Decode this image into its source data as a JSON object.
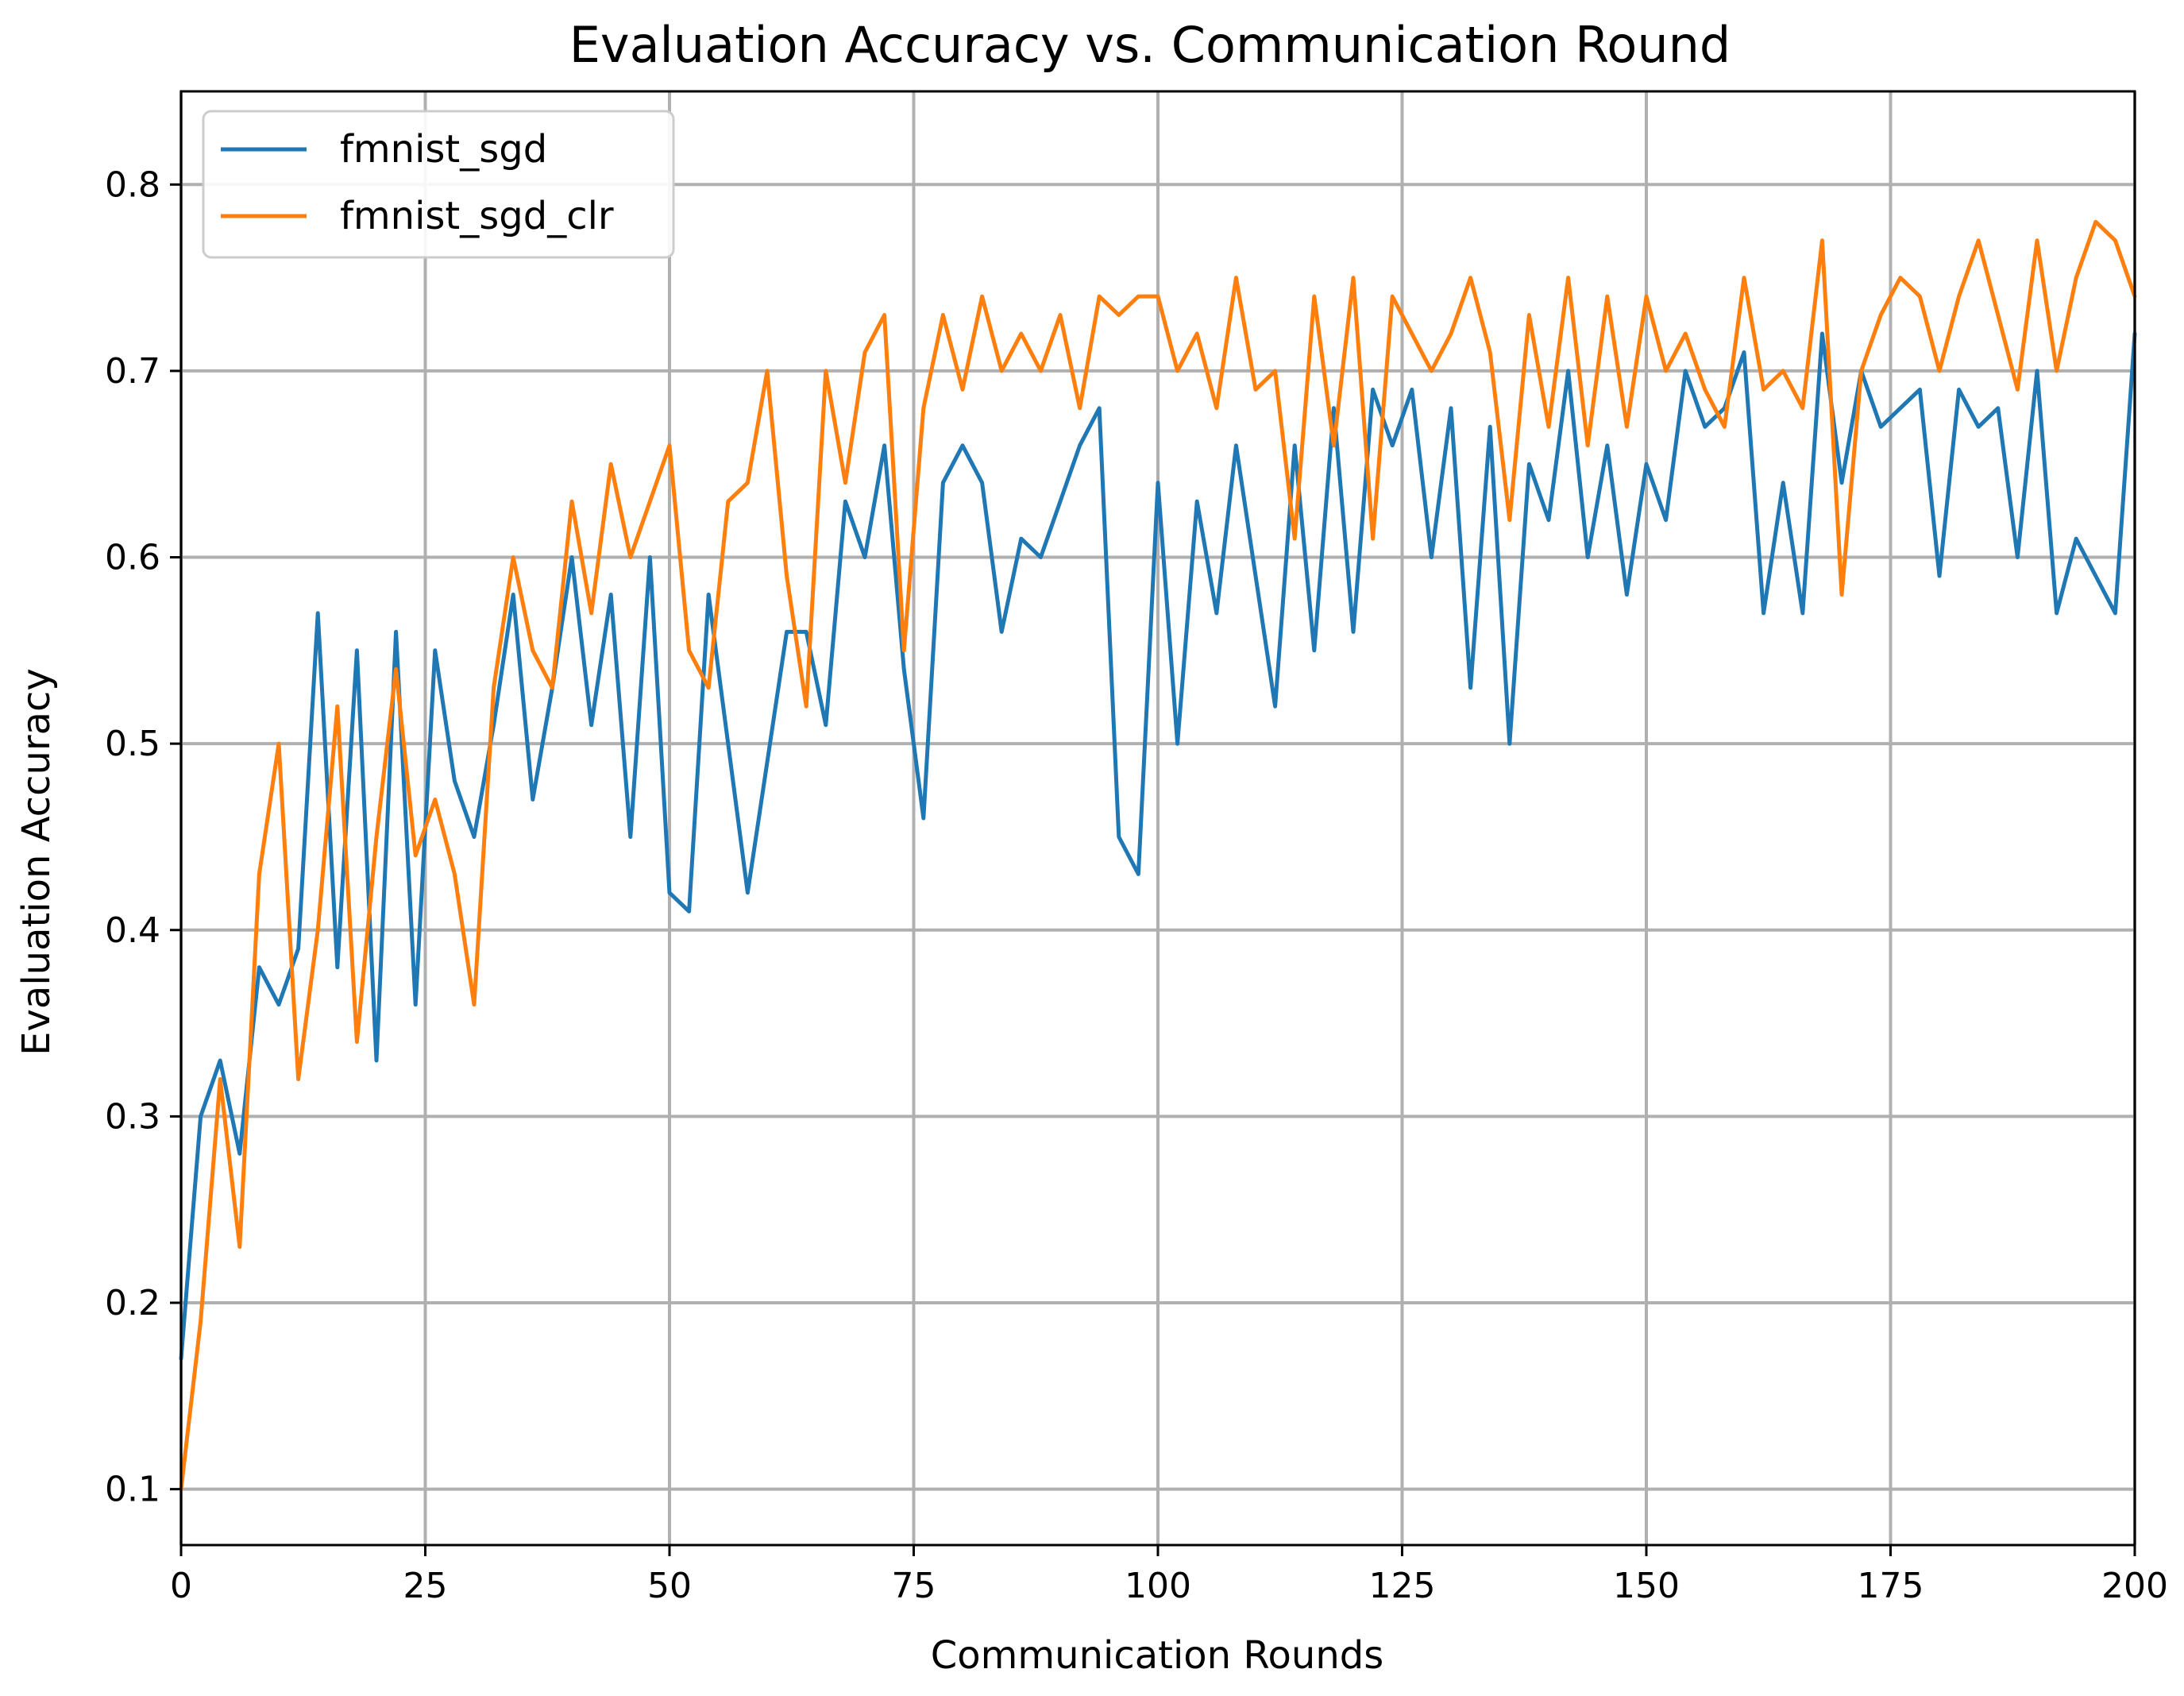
{
  "chart_data": {
    "type": "line",
    "title": "Evaluation Accuracy vs. Communication Round",
    "xlabel": "Communication Rounds",
    "ylabel": "Evaluation Accuracy",
    "xlim": [
      0,
      200
    ],
    "ylim": [
      0.07,
      0.85
    ],
    "xticks": [
      0,
      25,
      50,
      75,
      100,
      125,
      150,
      175,
      200
    ],
    "yticks": [
      0.1,
      0.2,
      0.3,
      0.4,
      0.5,
      0.6,
      0.7,
      0.8
    ],
    "xtick_labels": [
      "0",
      "25",
      "50",
      "75",
      "100",
      "125",
      "150",
      "175",
      "200"
    ],
    "ytick_labels": [
      "0.1",
      "0.2",
      "0.3",
      "0.4",
      "0.5",
      "0.6",
      "0.7",
      "0.8"
    ],
    "grid": true,
    "legend_position": "top-left",
    "x": [
      0,
      2,
      4,
      6,
      8,
      10,
      12,
      14,
      16,
      18,
      20,
      22,
      24,
      26,
      28,
      30,
      32,
      34,
      36,
      38,
      40,
      42,
      44,
      46,
      48,
      50,
      52,
      54,
      56,
      58,
      60,
      62,
      64,
      66,
      68,
      70,
      72,
      74,
      76,
      78,
      80,
      82,
      84,
      86,
      88,
      90,
      92,
      94,
      96,
      98,
      100,
      102,
      104,
      106,
      108,
      110,
      112,
      114,
      116,
      118,
      120,
      122,
      124,
      126,
      128,
      130,
      132,
      134,
      136,
      138,
      140,
      142,
      144,
      146,
      148,
      150,
      152,
      154,
      156,
      158,
      160,
      162,
      164,
      166,
      168,
      170,
      172,
      174,
      176,
      178,
      180,
      182,
      184,
      186,
      188,
      190,
      192,
      194,
      196,
      198,
      200
    ],
    "series": [
      {
        "name": "fmnist_sgd",
        "color": "#1f77b4",
        "values": [
          0.17,
          0.3,
          0.33,
          0.28,
          0.38,
          0.36,
          0.39,
          0.57,
          0.38,
          0.55,
          0.33,
          0.56,
          0.36,
          0.55,
          0.48,
          0.45,
          0.51,
          0.58,
          0.47,
          0.53,
          0.6,
          0.51,
          0.58,
          0.45,
          0.6,
          0.42,
          0.41,
          0.58,
          0.5,
          0.42,
          0.49,
          0.56,
          0.56,
          0.51,
          0.63,
          0.6,
          0.66,
          0.54,
          0.46,
          0.64,
          0.66,
          0.64,
          0.56,
          0.61,
          0.6,
          0.63,
          0.66,
          0.68,
          0.45,
          0.43,
          0.64,
          0.5,
          0.63,
          0.57,
          0.66,
          0.59,
          0.52,
          0.66,
          0.55,
          0.68,
          0.56,
          0.69,
          0.66,
          0.69,
          0.6,
          0.68,
          0.53,
          0.67,
          0.5,
          0.65,
          0.62,
          0.7,
          0.6,
          0.66,
          0.58,
          0.65,
          0.62,
          0.7,
          0.67,
          0.68,
          0.71,
          0.57,
          0.64,
          0.57,
          0.72,
          0.64,
          0.7,
          0.67,
          0.68,
          0.69,
          0.59,
          0.69,
          0.67,
          0.68,
          0.6,
          0.7,
          0.57,
          0.61,
          0.59,
          0.57,
          0.72
        ]
      },
      {
        "name": "fmnist_sgd_clr",
        "color": "#ff7f0e",
        "values": [
          0.1,
          0.19,
          0.32,
          0.23,
          0.43,
          0.5,
          0.32,
          0.4,
          0.52,
          0.34,
          0.45,
          0.54,
          0.44,
          0.47,
          0.43,
          0.36,
          0.53,
          0.6,
          0.55,
          0.53,
          0.63,
          0.57,
          0.65,
          0.6,
          0.63,
          0.66,
          0.55,
          0.53,
          0.63,
          0.64,
          0.7,
          0.59,
          0.52,
          0.7,
          0.64,
          0.71,
          0.73,
          0.55,
          0.68,
          0.73,
          0.69,
          0.74,
          0.7,
          0.72,
          0.7,
          0.73,
          0.68,
          0.74,
          0.73,
          0.74,
          0.74,
          0.7,
          0.72,
          0.68,
          0.75,
          0.69,
          0.7,
          0.61,
          0.74,
          0.66,
          0.75,
          0.61,
          0.74,
          0.72,
          0.7,
          0.72,
          0.75,
          0.71,
          0.62,
          0.73,
          0.67,
          0.75,
          0.66,
          0.74,
          0.67,
          0.74,
          0.7,
          0.72,
          0.69,
          0.67,
          0.75,
          0.69,
          0.7,
          0.68,
          0.77,
          0.58,
          0.7,
          0.73,
          0.75,
          0.74,
          0.7,
          0.74,
          0.77,
          0.73,
          0.69,
          0.77,
          0.7,
          0.75,
          0.78,
          0.77,
          0.74
        ]
      }
    ]
  }
}
